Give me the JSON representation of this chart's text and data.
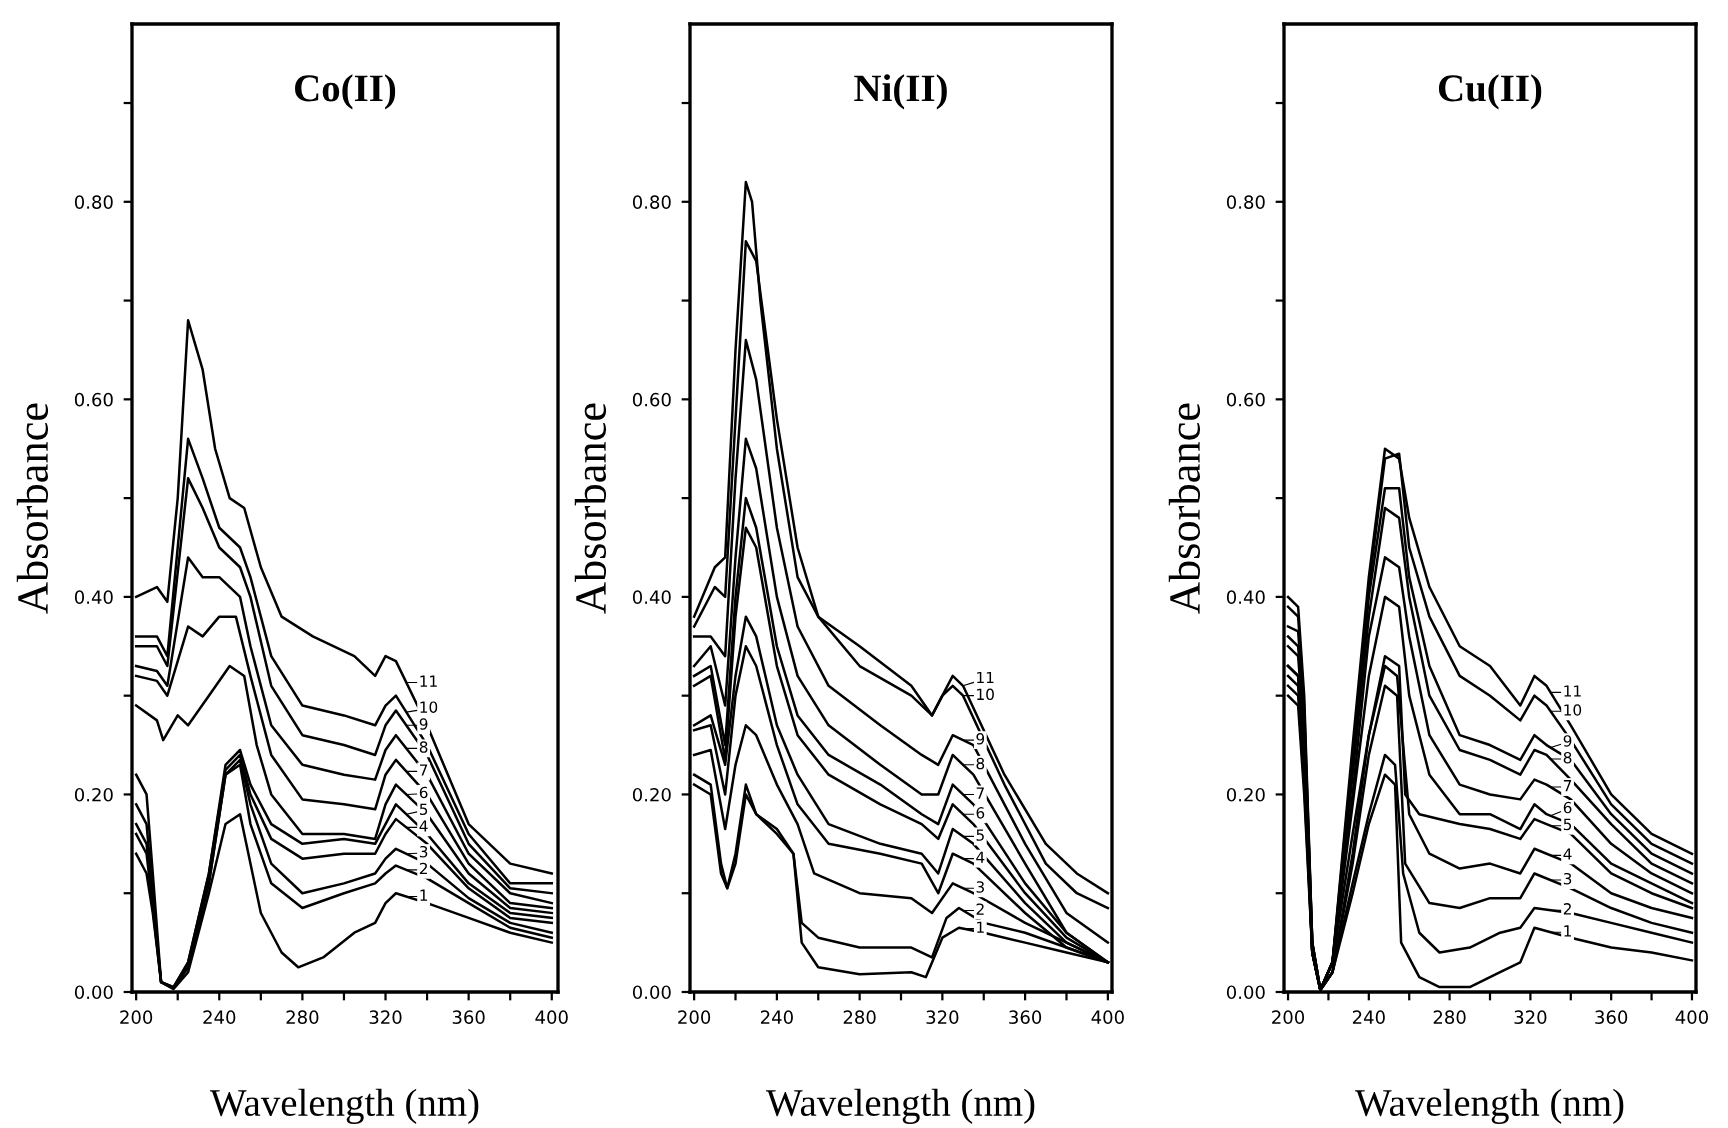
{
  "chart_data": [
    {
      "type": "line",
      "legend": "right",
      "title": "Co(II)",
      "xlabel": "Wavelength (nm)",
      "ylabel": "Absorbance",
      "xlim": [
        198,
        403
      ],
      "ylim": [
        0,
        0.98
      ],
      "xticks": [
        200,
        {
          "value": 220,
          "label": null
        },
        240,
        {
          "value": 260,
          "label": null
        },
        280,
        {
          "value": 300,
          "label": null
        },
        320,
        {
          "value": 340,
          "label": null
        },
        360,
        {
          "value": 380,
          "label": null
        },
        400
      ],
      "yticks": [
        {
          "value": 0,
          "label": "0.00"
        },
        {
          "value": 0.1,
          "label": null
        },
        {
          "value": 0.2,
          "label": "0.20"
        },
        {
          "value": 0.3,
          "label": null
        },
        {
          "value": 0.4,
          "label": "0.40"
        },
        {
          "value": 0.5,
          "label": null
        },
        {
          "value": 0.6,
          "label": "0.60"
        },
        {
          "value": 0.7,
          "label": null
        },
        {
          "value": 0.8,
          "label": "0.80"
        },
        {
          "value": 0.9,
          "label": null
        }
      ],
      "series": [
        {
          "name": "1",
          "color": "#000000",
          "x": [
            200,
            205,
            208,
            212,
            218,
            225,
            235,
            243,
            250,
            253,
            260,
            270,
            278,
            290,
            305,
            315,
            320,
            325,
            340,
            360,
            380,
            400
          ],
          "values": [
            0.14,
            0.12,
            0.08,
            0.01,
            0.003,
            0.02,
            0.1,
            0.17,
            0.18,
            0.15,
            0.08,
            0.04,
            0.025,
            0.035,
            0.06,
            0.07,
            0.09,
            0.1,
            0.09,
            0.075,
            0.06,
            0.05
          ]
        },
        {
          "name": "2",
          "color": "#000000",
          "x": [
            200,
            205,
            208,
            212,
            218,
            225,
            235,
            243,
            250,
            255,
            265,
            280,
            300,
            315,
            320,
            325,
            340,
            360,
            380,
            400
          ],
          "values": [
            0.16,
            0.14,
            0.085,
            0.01,
            0.004,
            0.025,
            0.11,
            0.22,
            0.23,
            0.17,
            0.11,
            0.085,
            0.1,
            0.11,
            0.12,
            0.128,
            0.115,
            0.09,
            0.065,
            0.055
          ]
        },
        {
          "name": "3",
          "color": "#000000",
          "x": [
            200,
            205,
            208,
            212,
            218,
            225,
            235,
            243,
            250,
            255,
            265,
            280,
            300,
            315,
            320,
            325,
            340,
            360,
            380,
            400
          ],
          "values": [
            0.17,
            0.15,
            0.09,
            0.01,
            0.004,
            0.025,
            0.11,
            0.22,
            0.235,
            0.19,
            0.13,
            0.1,
            0.11,
            0.12,
            0.135,
            0.145,
            0.13,
            0.095,
            0.07,
            0.06
          ]
        },
        {
          "name": "4",
          "color": "#000000",
          "x": [
            200,
            205,
            208,
            212,
            218,
            225,
            235,
            243,
            250,
            255,
            265,
            280,
            300,
            315,
            320,
            325,
            340,
            360,
            380,
            400
          ],
          "values": [
            0.19,
            0.17,
            0.1,
            0.01,
            0.005,
            0.03,
            0.12,
            0.225,
            0.24,
            0.2,
            0.155,
            0.135,
            0.14,
            0.14,
            0.16,
            0.175,
            0.15,
            0.105,
            0.075,
            0.07
          ]
        },
        {
          "name": "5",
          "color": "#000000",
          "x": [
            200,
            205,
            208,
            212,
            218,
            225,
            235,
            243,
            250,
            255,
            265,
            280,
            300,
            315,
            320,
            325,
            340,
            360,
            380,
            400
          ],
          "values": [
            0.22,
            0.2,
            0.12,
            0.01,
            0.005,
            0.03,
            0.12,
            0.23,
            0.245,
            0.21,
            0.17,
            0.15,
            0.155,
            0.15,
            0.17,
            0.19,
            0.16,
            0.11,
            0.08,
            0.075
          ]
        },
        {
          "name": "6",
          "color": "#000000",
          "x": [
            200,
            210,
            213,
            220,
            225,
            235,
            245,
            252,
            258,
            265,
            280,
            300,
            315,
            320,
            325,
            340,
            360,
            380,
            400
          ],
          "values": [
            0.29,
            0.275,
            0.255,
            0.28,
            0.27,
            0.3,
            0.33,
            0.32,
            0.25,
            0.2,
            0.16,
            0.16,
            0.155,
            0.19,
            0.21,
            0.18,
            0.12,
            0.085,
            0.08
          ]
        },
        {
          "name": "7",
          "color": "#000000",
          "x": [
            200,
            210,
            215,
            225,
            232,
            240,
            248,
            255,
            265,
            280,
            300,
            315,
            320,
            325,
            340,
            360,
            380,
            400
          ],
          "values": [
            0.32,
            0.315,
            0.3,
            0.37,
            0.36,
            0.38,
            0.38,
            0.32,
            0.24,
            0.195,
            0.19,
            0.185,
            0.22,
            0.235,
            0.2,
            0.13,
            0.09,
            0.085
          ]
        },
        {
          "name": "8",
          "color": "#000000",
          "x": [
            200,
            210,
            215,
            225,
            232,
            240,
            250,
            255,
            265,
            280,
            300,
            315,
            320,
            325,
            340,
            360,
            380,
            400
          ],
          "values": [
            0.33,
            0.325,
            0.31,
            0.44,
            0.42,
            0.42,
            0.4,
            0.35,
            0.27,
            0.23,
            0.22,
            0.215,
            0.245,
            0.26,
            0.22,
            0.14,
            0.1,
            0.09
          ]
        },
        {
          "name": "9",
          "color": "#000000",
          "x": [
            200,
            210,
            215,
            225,
            232,
            240,
            250,
            255,
            265,
            280,
            300,
            315,
            320,
            325,
            340,
            360,
            380,
            400
          ],
          "values": [
            0.35,
            0.35,
            0.33,
            0.52,
            0.49,
            0.45,
            0.43,
            0.4,
            0.31,
            0.26,
            0.25,
            0.24,
            0.27,
            0.285,
            0.24,
            0.15,
            0.105,
            0.1
          ]
        },
        {
          "name": "10",
          "color": "#000000",
          "x": [
            200,
            210,
            215,
            225,
            232,
            240,
            250,
            255,
            265,
            280,
            300,
            315,
            320,
            325,
            340,
            360,
            380,
            400
          ],
          "values": [
            0.36,
            0.36,
            0.34,
            0.56,
            0.52,
            0.47,
            0.45,
            0.42,
            0.34,
            0.29,
            0.28,
            0.27,
            0.29,
            0.3,
            0.25,
            0.16,
            0.11,
            0.11
          ]
        },
        {
          "name": "11",
          "color": "#000000",
          "x": [
            200,
            210,
            215,
            220,
            225,
            232,
            238,
            245,
            252,
            260,
            270,
            285,
            305,
            315,
            320,
            325,
            340,
            360,
            380,
            400
          ],
          "values": [
            0.4,
            0.41,
            0.395,
            0.5,
            0.68,
            0.63,
            0.55,
            0.5,
            0.49,
            0.43,
            0.38,
            0.36,
            0.34,
            0.32,
            0.34,
            0.335,
            0.27,
            0.17,
            0.13,
            0.12
          ]
        }
      ]
    },
    {
      "type": "line",
      "legend": "right",
      "title": "Ni(II)",
      "xlabel": "Wavelength (nm)",
      "ylabel": "Absorbance",
      "xlim": [
        198,
        402
      ],
      "ylim": [
        0,
        0.98
      ],
      "xticks": [
        200,
        {
          "value": 220,
          "label": null
        },
        240,
        {
          "value": 260,
          "label": null
        },
        280,
        {
          "value": 300,
          "label": null
        },
        320,
        {
          "value": 340,
          "label": null
        },
        360,
        {
          "value": 380,
          "label": null
        },
        400
      ],
      "yticks": [
        {
          "value": 0,
          "label": "0.00"
        },
        {
          "value": 0.1,
          "label": null
        },
        {
          "value": 0.2,
          "label": "0.20"
        },
        {
          "value": 0.3,
          "label": null
        },
        {
          "value": 0.4,
          "label": "0.40"
        },
        {
          "value": 0.5,
          "label": null
        },
        {
          "value": 0.6,
          "label": "0.60"
        },
        {
          "value": 0.7,
          "label": null
        },
        {
          "value": 0.8,
          "label": "0.80"
        },
        {
          "value": 0.9,
          "label": null
        }
      ],
      "series": [
        {
          "name": "1",
          "color": "#000000",
          "x": [
            200,
            208,
            213,
            216,
            220,
            225,
            230,
            240,
            248,
            252,
            260,
            280,
            305,
            312,
            320,
            328,
            340,
            360,
            380,
            400
          ],
          "values": [
            0.21,
            0.2,
            0.12,
            0.105,
            0.13,
            0.2,
            0.18,
            0.16,
            0.14,
            0.05,
            0.025,
            0.018,
            0.02,
            0.015,
            0.055,
            0.065,
            0.06,
            0.05,
            0.04,
            0.03
          ]
        },
        {
          "name": "2",
          "color": "#000000",
          "x": [
            200,
            208,
            213,
            216,
            220,
            225,
            230,
            240,
            248,
            252,
            260,
            280,
            305,
            315,
            322,
            328,
            340,
            360,
            380,
            400
          ],
          "values": [
            0.22,
            0.21,
            0.13,
            0.105,
            0.14,
            0.21,
            0.18,
            0.165,
            0.14,
            0.07,
            0.055,
            0.045,
            0.045,
            0.035,
            0.075,
            0.085,
            0.07,
            0.06,
            0.045,
            0.03
          ]
        },
        {
          "name": "3",
          "color": "#000000",
          "x": [
            200,
            208,
            215,
            220,
            225,
            230,
            240,
            250,
            258,
            280,
            305,
            315,
            325,
            335,
            360,
            380,
            400
          ],
          "values": [
            0.24,
            0.245,
            0.165,
            0.23,
            0.27,
            0.26,
            0.21,
            0.17,
            0.12,
            0.1,
            0.095,
            0.08,
            0.11,
            0.1,
            0.07,
            0.05,
            0.03
          ]
        },
        {
          "name": "4",
          "color": "#000000",
          "x": [
            200,
            208,
            215,
            220,
            225,
            230,
            240,
            250,
            265,
            290,
            310,
            318,
            325,
            335,
            360,
            380,
            400
          ],
          "values": [
            0.265,
            0.27,
            0.2,
            0.3,
            0.35,
            0.33,
            0.25,
            0.19,
            0.15,
            0.14,
            0.13,
            0.1,
            0.14,
            0.13,
            0.08,
            0.045,
            0.03
          ]
        },
        {
          "name": "5",
          "color": "#000000",
          "x": [
            200,
            208,
            215,
            220,
            225,
            230,
            240,
            250,
            265,
            290,
            310,
            318,
            325,
            335,
            360,
            380,
            400
          ],
          "values": [
            0.27,
            0.28,
            0.23,
            0.32,
            0.38,
            0.36,
            0.27,
            0.22,
            0.17,
            0.15,
            0.14,
            0.12,
            0.165,
            0.15,
            0.09,
            0.05,
            0.03
          ]
        },
        {
          "name": "6",
          "color": "#000000",
          "x": [
            200,
            208,
            215,
            220,
            225,
            230,
            240,
            250,
            265,
            290,
            310,
            318,
            325,
            335,
            360,
            380,
            400
          ],
          "values": [
            0.31,
            0.32,
            0.235,
            0.38,
            0.47,
            0.45,
            0.33,
            0.26,
            0.22,
            0.19,
            0.17,
            0.155,
            0.19,
            0.17,
            0.1,
            0.055,
            0.03
          ]
        },
        {
          "name": "7",
          "color": "#000000",
          "x": [
            200,
            208,
            215,
            220,
            225,
            230,
            240,
            250,
            265,
            290,
            310,
            318,
            325,
            335,
            360,
            380,
            400
          ],
          "values": [
            0.32,
            0.33,
            0.25,
            0.4,
            0.5,
            0.47,
            0.35,
            0.28,
            0.24,
            0.21,
            0.18,
            0.17,
            0.21,
            0.19,
            0.11,
            0.06,
            0.03
          ]
        },
        {
          "name": "8",
          "color": "#000000",
          "x": [
            200,
            208,
            215,
            220,
            225,
            230,
            240,
            250,
            265,
            290,
            310,
            318,
            325,
            335,
            360,
            380,
            400
          ],
          "values": [
            0.33,
            0.35,
            0.29,
            0.44,
            0.56,
            0.53,
            0.4,
            0.32,
            0.27,
            0.23,
            0.2,
            0.2,
            0.24,
            0.22,
            0.13,
            0.06,
            0.03
          ]
        },
        {
          "name": "9",
          "color": "#000000",
          "x": [
            200,
            208,
            215,
            220,
            225,
            230,
            240,
            250,
            265,
            290,
            310,
            318,
            325,
            335,
            360,
            380,
            400
          ],
          "values": [
            0.36,
            0.36,
            0.34,
            0.52,
            0.66,
            0.62,
            0.47,
            0.37,
            0.31,
            0.27,
            0.24,
            0.23,
            0.26,
            0.25,
            0.15,
            0.08,
            0.05
          ]
        },
        {
          "name": "10",
          "color": "#000000",
          "x": [
            200,
            210,
            215,
            220,
            225,
            230,
            240,
            250,
            260,
            280,
            305,
            315,
            320,
            325,
            330,
            350,
            370,
            385,
            400
          ],
          "values": [
            0.37,
            0.41,
            0.4,
            0.58,
            0.76,
            0.74,
            0.58,
            0.45,
            0.38,
            0.33,
            0.3,
            0.28,
            0.3,
            0.31,
            0.3,
            0.21,
            0.13,
            0.1,
            0.085
          ]
        },
        {
          "name": "11",
          "color": "#000000",
          "x": [
            200,
            210,
            215,
            220,
            225,
            228,
            232,
            240,
            250,
            260,
            280,
            305,
            315,
            320,
            325,
            330,
            350,
            370,
            385,
            400
          ],
          "values": [
            0.38,
            0.43,
            0.44,
            0.65,
            0.82,
            0.8,
            0.7,
            0.55,
            0.42,
            0.38,
            0.35,
            0.31,
            0.28,
            0.3,
            0.32,
            0.31,
            0.22,
            0.15,
            0.12,
            0.1
          ]
        }
      ]
    },
    {
      "type": "line",
      "legend": "right",
      "title": "Cu(II)",
      "xlabel": "Wavelength (nm)",
      "ylabel": "Absorbance",
      "xlim": [
        198,
        402
      ],
      "ylim": [
        0,
        0.98
      ],
      "xticks": [
        200,
        {
          "value": 220,
          "label": null
        },
        240,
        {
          "value": 260,
          "label": null
        },
        280,
        {
          "value": 300,
          "label": null
        },
        320,
        {
          "value": 340,
          "label": null
        },
        360,
        {
          "value": 380,
          "label": null
        },
        400
      ],
      "yticks": [
        {
          "value": 0,
          "label": "0.00"
        },
        {
          "value": 0.1,
          "label": null
        },
        {
          "value": 0.2,
          "label": "0.20"
        },
        {
          "value": 0.3,
          "label": null
        },
        {
          "value": 0.4,
          "label": "0.40"
        },
        {
          "value": 0.5,
          "label": null
        },
        {
          "value": 0.6,
          "label": "0.60"
        },
        {
          "value": 0.7,
          "label": null
        },
        {
          "value": 0.8,
          "label": "0.80"
        },
        {
          "value": 0.9,
          "label": null
        }
      ],
      "series": [
        {
          "name": "1",
          "color": "#000000",
          "x": [
            200,
            205,
            208,
            212,
            216,
            222,
            232,
            240,
            248,
            253,
            256,
            265,
            275,
            290,
            305,
            315,
            322,
            340,
            360,
            380,
            400
          ],
          "values": [
            0.3,
            0.29,
            0.2,
            0.04,
            0.002,
            0.02,
            0.1,
            0.17,
            0.22,
            0.21,
            0.05,
            0.015,
            0.005,
            0.005,
            0.02,
            0.03,
            0.065,
            0.055,
            0.045,
            0.04,
            0.032
          ]
        },
        {
          "name": "2",
          "color": "#000000",
          "x": [
            200,
            205,
            208,
            212,
            216,
            222,
            232,
            240,
            248,
            253,
            257,
            265,
            275,
            290,
            305,
            315,
            322,
            340,
            360,
            380,
            400
          ],
          "values": [
            0.31,
            0.3,
            0.21,
            0.04,
            0.002,
            0.02,
            0.11,
            0.18,
            0.24,
            0.23,
            0.12,
            0.06,
            0.04,
            0.045,
            0.06,
            0.065,
            0.085,
            0.08,
            0.07,
            0.06,
            0.05
          ]
        },
        {
          "name": "3",
          "color": "#000000",
          "x": [
            200,
            205,
            208,
            212,
            216,
            222,
            232,
            240,
            248,
            254,
            258,
            270,
            285,
            300,
            315,
            322,
            340,
            360,
            380,
            400
          ],
          "values": [
            0.32,
            0.31,
            0.22,
            0.04,
            0.002,
            0.02,
            0.13,
            0.24,
            0.31,
            0.3,
            0.13,
            0.09,
            0.085,
            0.095,
            0.095,
            0.12,
            0.105,
            0.085,
            0.07,
            0.06
          ]
        },
        {
          "name": "4",
          "color": "#000000",
          "x": [
            200,
            205,
            208,
            212,
            216,
            222,
            232,
            240,
            248,
            254,
            260,
            270,
            285,
            300,
            315,
            322,
            340,
            360,
            380,
            400
          ],
          "values": [
            0.33,
            0.32,
            0.23,
            0.04,
            0.002,
            0.02,
            0.14,
            0.26,
            0.33,
            0.32,
            0.18,
            0.14,
            0.125,
            0.13,
            0.12,
            0.145,
            0.13,
            0.1,
            0.085,
            0.075
          ]
        },
        {
          "name": "5",
          "color": "#000000",
          "x": [
            200,
            205,
            208,
            212,
            216,
            222,
            232,
            240,
            248,
            255,
            258,
            265,
            285,
            300,
            315,
            322,
            328,
            340,
            360,
            380,
            400
          ],
          "values": [
            0.33,
            0.32,
            0.24,
            0.04,
            0.002,
            0.03,
            0.16,
            0.26,
            0.34,
            0.33,
            0.2,
            0.18,
            0.17,
            0.165,
            0.155,
            0.175,
            0.17,
            0.16,
            0.12,
            0.1,
            0.085
          ]
        },
        {
          "name": "6",
          "color": "#000000",
          "x": [
            200,
            205,
            208,
            212,
            216,
            222,
            232,
            240,
            248,
            255,
            260,
            270,
            285,
            300,
            315,
            322,
            328,
            340,
            360,
            380,
            400
          ],
          "values": [
            0.33,
            0.32,
            0.25,
            0.04,
            0.002,
            0.03,
            0.19,
            0.32,
            0.4,
            0.39,
            0.3,
            0.22,
            0.18,
            0.18,
            0.165,
            0.19,
            0.18,
            0.17,
            0.13,
            0.11,
            0.09
          ]
        },
        {
          "name": "7",
          "color": "#000000",
          "x": [
            200,
            205,
            208,
            212,
            216,
            222,
            232,
            240,
            248,
            255,
            260,
            270,
            285,
            300,
            315,
            322,
            328,
            340,
            360,
            380,
            400
          ],
          "values": [
            0.35,
            0.34,
            0.26,
            0.04,
            0.002,
            0.03,
            0.2,
            0.36,
            0.44,
            0.43,
            0.36,
            0.26,
            0.21,
            0.2,
            0.195,
            0.215,
            0.21,
            0.195,
            0.15,
            0.12,
            0.1
          ]
        },
        {
          "name": "8",
          "color": "#000000",
          "x": [
            200,
            205,
            208,
            212,
            216,
            222,
            232,
            240,
            248,
            255,
            260,
            270,
            285,
            300,
            315,
            322,
            328,
            340,
            360,
            380,
            400
          ],
          "values": [
            0.36,
            0.35,
            0.27,
            0.05,
            0.002,
            0.03,
            0.22,
            0.38,
            0.49,
            0.48,
            0.4,
            0.3,
            0.245,
            0.235,
            0.22,
            0.245,
            0.24,
            0.215,
            0.17,
            0.13,
            0.11
          ]
        },
        {
          "name": "9",
          "color": "#000000",
          "x": [
            200,
            205,
            208,
            212,
            216,
            222,
            232,
            240,
            248,
            255,
            260,
            270,
            285,
            300,
            315,
            322,
            328,
            340,
            360,
            380,
            400
          ],
          "values": [
            0.37,
            0.365,
            0.28,
            0.05,
            0.002,
            0.03,
            0.23,
            0.4,
            0.51,
            0.51,
            0.42,
            0.33,
            0.26,
            0.25,
            0.235,
            0.26,
            0.25,
            0.235,
            0.18,
            0.14,
            0.12
          ]
        },
        {
          "name": "10",
          "color": "#000000",
          "x": [
            200,
            205,
            208,
            212,
            216,
            222,
            232,
            240,
            248,
            255,
            260,
            270,
            285,
            300,
            315,
            322,
            328,
            340,
            360,
            380,
            400
          ],
          "values": [
            0.39,
            0.38,
            0.29,
            0.05,
            0.002,
            0.03,
            0.24,
            0.41,
            0.54,
            0.545,
            0.45,
            0.38,
            0.32,
            0.3,
            0.275,
            0.3,
            0.29,
            0.255,
            0.19,
            0.15,
            0.13
          ]
        },
        {
          "name": "11",
          "color": "#000000",
          "x": [
            200,
            205,
            208,
            212,
            216,
            222,
            232,
            240,
            248,
            255,
            260,
            270,
            285,
            300,
            315,
            322,
            328,
            340,
            360,
            380,
            400
          ],
          "values": [
            0.4,
            0.39,
            0.3,
            0.05,
            0.002,
            0.03,
            0.25,
            0.42,
            0.55,
            0.54,
            0.48,
            0.41,
            0.35,
            0.33,
            0.29,
            0.32,
            0.31,
            0.27,
            0.2,
            0.16,
            0.14
          ]
        }
      ]
    }
  ]
}
